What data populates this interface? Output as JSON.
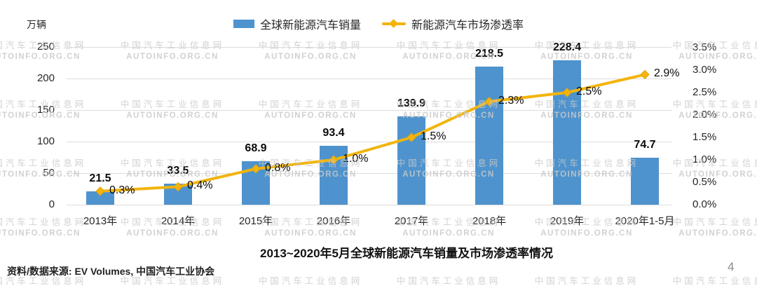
{
  "page_number": "4",
  "source_note": "资料/数据来源: EV Volumes, 中国汽车工业协会",
  "watermark": {
    "line1": "中国汽车工业信息网",
    "line2": "AUTOINFO.ORG.CN"
  },
  "colors": {
    "bar": "#4E93CD",
    "line": "#F2B40D",
    "marker_stroke": "#E3A40B",
    "grid": "#DCDCDC",
    "watermark": "#CACACA",
    "page_number": "#8A8A8A"
  },
  "chart_data": {
    "type": "bar",
    "combo": "bar+line",
    "title": "2013~2020年5月全球新能源汽车销量及市场渗透率情况",
    "unit_label": "万辆",
    "legend_position": "top",
    "grid": true,
    "categories": [
      "2013年",
      "2014年",
      "2015年",
      "2016年",
      "2017年",
      "2018年",
      "2019年",
      "2020年1-5月"
    ],
    "series": [
      {
        "name": "全球新能源汽车销量",
        "type": "bar",
        "axis": "left",
        "color": "#4E93CD",
        "values": [
          21.5,
          33.5,
          68.9,
          93.4,
          139.9,
          218.5,
          228.4,
          74.7
        ]
      },
      {
        "name": "新能源汽车市场渗透率",
        "type": "line",
        "axis": "right",
        "color": "#F2B40D",
        "values": [
          0.3,
          0.4,
          0.8,
          1.0,
          1.5,
          2.3,
          2.5,
          2.9
        ],
        "labels": [
          "0.3%",
          "0.4%",
          "0.8%",
          "1.0%",
          "1.5%",
          "2.3%",
          "2.5%",
          "2.9%"
        ]
      }
    ],
    "left_axis": {
      "ticks": [
        "0",
        "50",
        "100",
        "150",
        "200",
        "250"
      ],
      "tick_values": [
        0,
        50,
        100,
        150,
        200,
        250
      ],
      "min": 0,
      "max": 250,
      "unit": "万辆"
    },
    "right_axis": {
      "ticks": [
        "0.0%",
        "0.5%",
        "1.0%",
        "1.5%",
        "2.0%",
        "2.5%",
        "3.0%",
        "3.5%"
      ],
      "tick_values": [
        0,
        0.5,
        1.0,
        1.5,
        2.0,
        2.5,
        3.0,
        3.5
      ],
      "min": 0,
      "max": 3.5
    }
  }
}
